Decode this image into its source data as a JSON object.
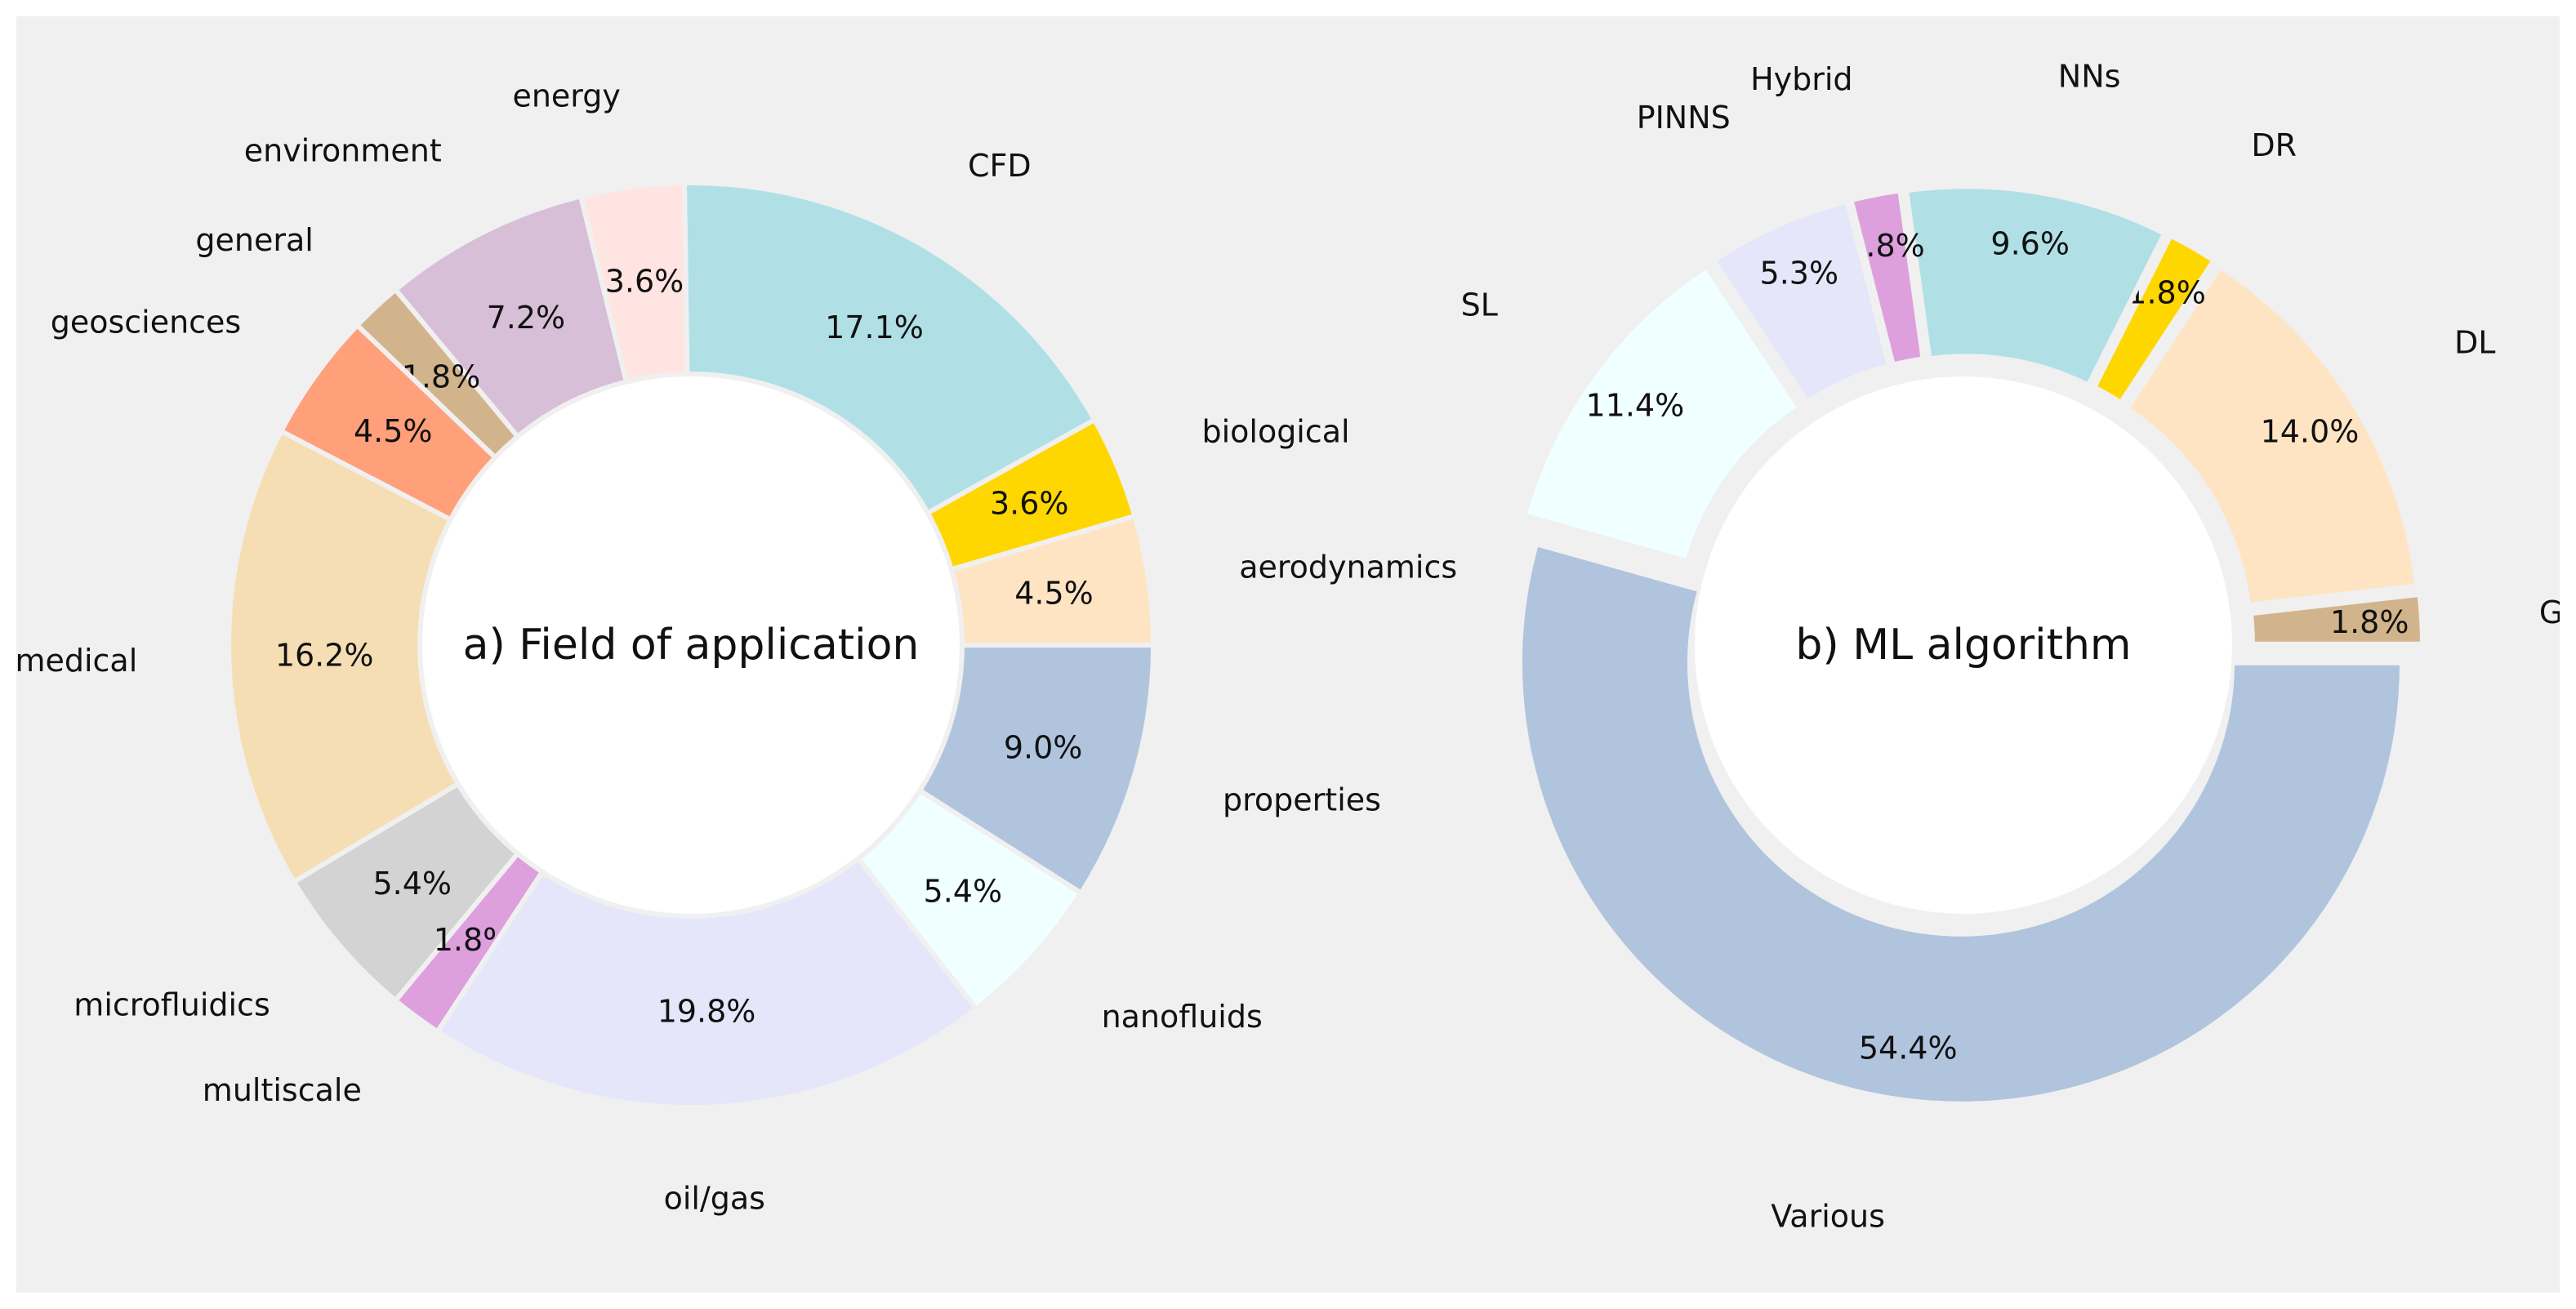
{
  "chart_data": [
    {
      "type": "donut",
      "title": "a) Field of application",
      "slices": [
        {
          "label": "aerodynamics",
          "pct_label": "4.5%",
          "value": 4.5,
          "color": "#FFE4C4",
          "explode": false
        },
        {
          "label": "biological",
          "pct_label": "3.6%",
          "value": 3.6,
          "color": "#FFD700",
          "explode": false
        },
        {
          "label": "CFD",
          "pct_label": "17.1%",
          "value": 17.1,
          "color": "#B0E0E6",
          "explode": false
        },
        {
          "label": "energy",
          "pct_label": "3.6%",
          "value": 3.6,
          "color": "#FFE4E1",
          "explode": false
        },
        {
          "label": "environment",
          "pct_label": "7.2%",
          "value": 7.2,
          "color": "#D8BFD8",
          "explode": false
        },
        {
          "label": "general",
          "pct_label": "1.8%",
          "value": 1.8,
          "color": "#D2B48C",
          "explode": false
        },
        {
          "label": "geosciences",
          "pct_label": "4.5%",
          "value": 4.5,
          "color": "#FFA07A",
          "explode": false
        },
        {
          "label": "medical",
          "pct_label": "16.2%",
          "value": 16.2,
          "color": "#F5DEB3",
          "explode": false
        },
        {
          "label": "microfluidics",
          "pct_label": "5.4%",
          "value": 5.4,
          "color": "#D3D3D3",
          "explode": false
        },
        {
          "label": "multiscale",
          "pct_label": "1.8%",
          "value": 1.8,
          "color": "#DDA0DD",
          "explode": false
        },
        {
          "label": "oil/gas",
          "pct_label": "19.8%",
          "value": 19.8,
          "color": "#E6E6FA",
          "explode": false
        },
        {
          "label": "nanofluids",
          "pct_label": "5.4%",
          "value": 5.4,
          "color": "#F0FFFF",
          "explode": false
        },
        {
          "label": "properties",
          "pct_label": "9.0%",
          "value": 9.0,
          "color": "#B0C4DE",
          "explode": false
        }
      ]
    },
    {
      "type": "donut",
      "title": "b) ML algorithm",
      "slices": [
        {
          "label": "GP",
          "pct_label": "1.8%",
          "value": 1.8,
          "color": "#D2B48C",
          "explode": true
        },
        {
          "label": "DL",
          "pct_label": "14.0%",
          "value": 14.0,
          "color": "#FFE4C4",
          "explode": true
        },
        {
          "label": "DR",
          "pct_label": "1.8%",
          "value": 1.8,
          "color": "#FFD700",
          "explode": true
        },
        {
          "label": "NNs",
          "pct_label": "9.6%",
          "value": 9.6,
          "color": "#B0E0E6",
          "explode": true
        },
        {
          "label": "Hybrid",
          "pct_label": "1.8%",
          "value": 1.8,
          "color": "#DDA0DD",
          "explode": true
        },
        {
          "label": "PINNS",
          "pct_label": "5.3%",
          "value": 5.3,
          "color": "#E6E6FA",
          "explode": true
        },
        {
          "label": "SL",
          "pct_label": "11.4%",
          "value": 11.4,
          "color": "#F0FFFF",
          "explode": true
        },
        {
          "label": "Various",
          "pct_label": "54.4%",
          "value": 54.4,
          "color": "#B0C4DE",
          "explode": true
        }
      ]
    }
  ]
}
